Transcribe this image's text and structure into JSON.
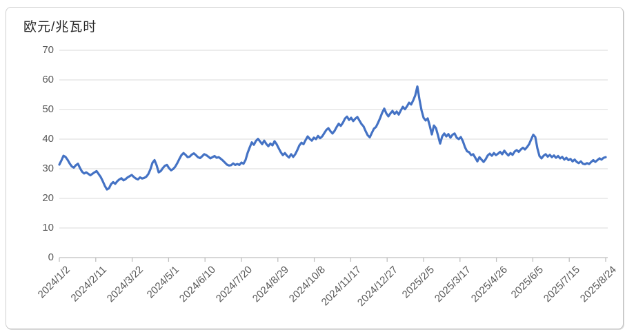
{
  "chart_data": {
    "type": "line",
    "title": "欧元/兆瓦时",
    "legend": "none",
    "grid": "horizontal",
    "ylim": [
      0,
      70
    ],
    "y_ticks": [
      0,
      10,
      20,
      30,
      40,
      50,
      60,
      70
    ],
    "x_tick_labels": [
      "2024/1/2",
      "2024/2/11",
      "2024/3/22",
      "2024/5/1",
      "2024/6/10",
      "2024/7/20",
      "2024/8/29",
      "2024/10/8",
      "2024/11/17",
      "2024/12/27",
      "2025/2/5",
      "2025/3/17",
      "2025/4/26",
      "2025/6/5",
      "2025/7/15",
      "2025/8/24"
    ],
    "series": [
      {
        "name": "欧元/兆瓦时",
        "color": "#4472C4",
        "values": [
          31.4,
          32.8,
          34.4,
          34.0,
          33.0,
          31.8,
          30.8,
          30.4,
          31.2,
          31.7,
          30.2,
          29.0,
          28.4,
          28.8,
          28.3,
          27.8,
          28.3,
          28.8,
          29.2,
          28.2,
          27.2,
          25.8,
          24.2,
          23.0,
          23.4,
          24.8,
          25.5,
          24.9,
          25.8,
          26.4,
          26.8,
          26.1,
          26.5,
          27.1,
          27.5,
          27.9,
          27.2,
          26.7,
          26.4,
          27.1,
          26.7,
          26.9,
          27.3,
          28.2,
          29.8,
          32.0,
          32.9,
          31.2,
          28.8,
          29.2,
          30.2,
          31.0,
          31.3,
          30.2,
          29.5,
          29.9,
          30.7,
          31.9,
          33.3,
          34.6,
          35.3,
          34.7,
          33.9,
          34.1,
          34.8,
          35.2,
          34.6,
          33.9,
          33.6,
          34.2,
          34.9,
          34.6,
          34.1,
          33.5,
          33.9,
          34.3,
          33.7,
          33.9,
          33.4,
          32.8,
          32.1,
          31.4,
          31.1,
          31.2,
          31.8,
          31.3,
          31.6,
          31.3,
          32.1,
          31.7,
          33.0,
          35.4,
          37.2,
          38.9,
          38.1,
          39.4,
          40.1,
          39.2,
          38.3,
          39.5,
          38.4,
          37.6,
          38.5,
          37.9,
          39.3,
          38.3,
          36.9,
          35.6,
          34.6,
          35.3,
          34.4,
          33.8,
          34.9,
          34.0,
          34.9,
          36.3,
          37.9,
          38.8,
          38.3,
          39.7,
          40.9,
          40.1,
          39.5,
          40.5,
          40.0,
          41.1,
          40.3,
          40.9,
          42.0,
          43.1,
          43.7,
          42.7,
          41.9,
          42.8,
          44.1,
          45.2,
          44.5,
          45.5,
          46.9,
          47.6,
          46.5,
          47.2,
          46.1,
          46.9,
          47.5,
          46.3,
          45.1,
          44.3,
          42.7,
          41.3,
          40.6,
          42.1,
          43.5,
          44.1,
          45.5,
          47.1,
          48.9,
          50.3,
          48.7,
          47.7,
          48.7,
          49.5,
          48.5,
          49.3,
          48.3,
          49.7,
          50.9,
          50.1,
          51.1,
          52.3,
          51.7,
          53.1,
          54.8,
          57.8,
          53.5,
          49.8,
          47.2,
          46.3,
          47.0,
          44.5,
          41.6,
          44.6,
          43.7,
          41.2,
          38.5,
          40.9,
          41.9,
          40.9,
          41.7,
          40.5,
          41.5,
          41.9,
          40.5,
          40.0,
          40.7,
          39.3,
          37.3,
          35.9,
          35.6,
          34.6,
          34.9,
          33.7,
          32.5,
          33.9,
          33.1,
          32.3,
          33.2,
          34.5,
          35.1,
          34.4,
          35.3,
          34.6,
          35.1,
          35.7,
          34.9,
          36.1,
          35.2,
          34.5,
          35.3,
          34.7,
          35.8,
          36.3,
          35.7,
          36.5,
          37.1,
          36.5,
          37.3,
          38.3,
          39.9,
          41.5,
          40.7,
          36.9,
          34.3,
          33.5,
          34.4,
          34.9,
          34.1,
          34.7,
          33.9,
          34.5,
          33.7,
          34.3,
          33.5,
          34.0,
          33.1,
          33.7,
          32.9,
          33.3,
          32.5,
          33.1,
          32.3,
          31.9,
          32.5,
          31.7,
          31.5,
          31.9,
          31.6,
          32.3,
          32.9,
          32.3,
          32.9,
          33.5,
          33.1,
          33.7,
          33.9
        ]
      }
    ]
  },
  "colors": {
    "series": "#4472C4",
    "gridline": "#D9D9D9",
    "axis_line": "#BFBFBF",
    "tick_label": "#595959",
    "title": "#262626",
    "background": "#FFFFFF",
    "card_border": "#CFCFCF"
  }
}
